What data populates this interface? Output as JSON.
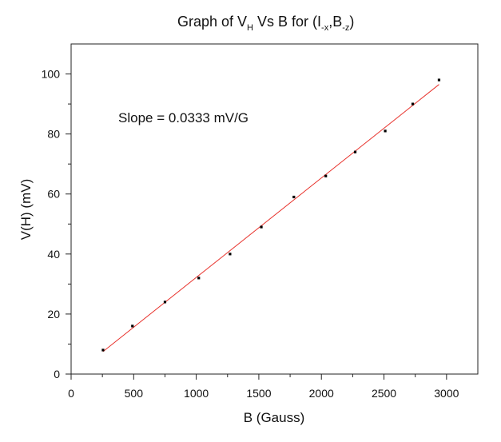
{
  "chart_data": {
    "type": "scatter",
    "title": {
      "prefix": "Graph of V",
      "sub1": "H",
      "mid": " Vs B  for (I",
      "sub2": "-x",
      "sep": ",B",
      "sub3": "-z",
      "suffix": ")"
    },
    "xlabel": "B (Gauss)",
    "ylabel": "V(H) (mV)",
    "annotation": "Slope = 0.0333 mV/G",
    "xlim": [
      0,
      3250
    ],
    "ylim": [
      0,
      110
    ],
    "x_ticks": [
      0,
      500,
      1000,
      1500,
      2000,
      2500,
      3000
    ],
    "y_ticks": [
      0,
      20,
      40,
      60,
      80,
      100
    ],
    "grid": false,
    "series": [
      {
        "x": [
          255,
          490,
          750,
          1020,
          1270,
          1520,
          1780,
          2035,
          2270,
          2510,
          2730,
          2940
        ],
        "y": [
          8,
          16,
          24,
          32,
          40,
          49,
          59,
          66,
          74,
          81,
          90,
          98
        ],
        "marker_color": "#000000"
      }
    ],
    "fit": {
      "x": [
        255,
        2940
      ],
      "y": [
        7.5,
        96.5
      ],
      "color": "#e8322c"
    }
  }
}
